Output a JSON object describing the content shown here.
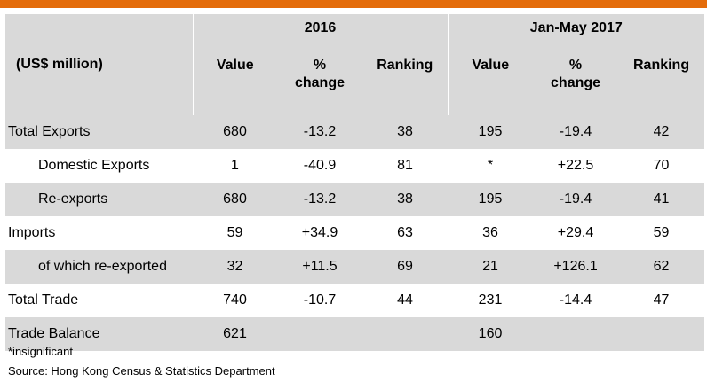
{
  "header": {
    "unit": "(US$ million)",
    "period1": "2016",
    "period2": "Jan-May 2017",
    "col_value": "Value",
    "col_change_line1": "%",
    "col_change_line2": "change",
    "col_ranking": "Ranking"
  },
  "rows": [
    {
      "label": "Total Exports",
      "v1": "680",
      "c1": "-13.2",
      "r1": "38",
      "v2": "195",
      "c2": "-19.4",
      "r2": "42"
    },
    {
      "label": "Domestic Exports",
      "v1": "1",
      "c1": "-40.9",
      "r1": "81",
      "v2": "*",
      "c2": "+22.5",
      "r2": "70"
    },
    {
      "label": "Re-exports",
      "v1": "680",
      "c1": "-13.2",
      "r1": "38",
      "v2": "195",
      "c2": "-19.4",
      "r2": "41"
    },
    {
      "label": "Imports",
      "v1": "59",
      "c1": "+34.9",
      "r1": "63",
      "v2": "36",
      "c2": "+29.4",
      "r2": "59"
    },
    {
      "label": "of which re-exported",
      "v1": "32",
      "c1": "+11.5",
      "r1": "69",
      "v2": "21",
      "c2": "+126.1",
      "r2": "62"
    },
    {
      "label": "Total Trade",
      "v1": "740",
      "c1": "-10.7",
      "r1": "44",
      "v2": "231",
      "c2": "-14.4",
      "r2": "47"
    },
    {
      "label": "Trade Balance",
      "v1": "621",
      "c1": "",
      "r1": "",
      "v2": "160",
      "c2": "",
      "r2": ""
    }
  ],
  "footnote": "*insignificant",
  "source": "Source: Hong Kong Census & Statistics Department",
  "colors": {
    "accent_bar": "#e46c0a",
    "shade": "#d9d9d9"
  }
}
